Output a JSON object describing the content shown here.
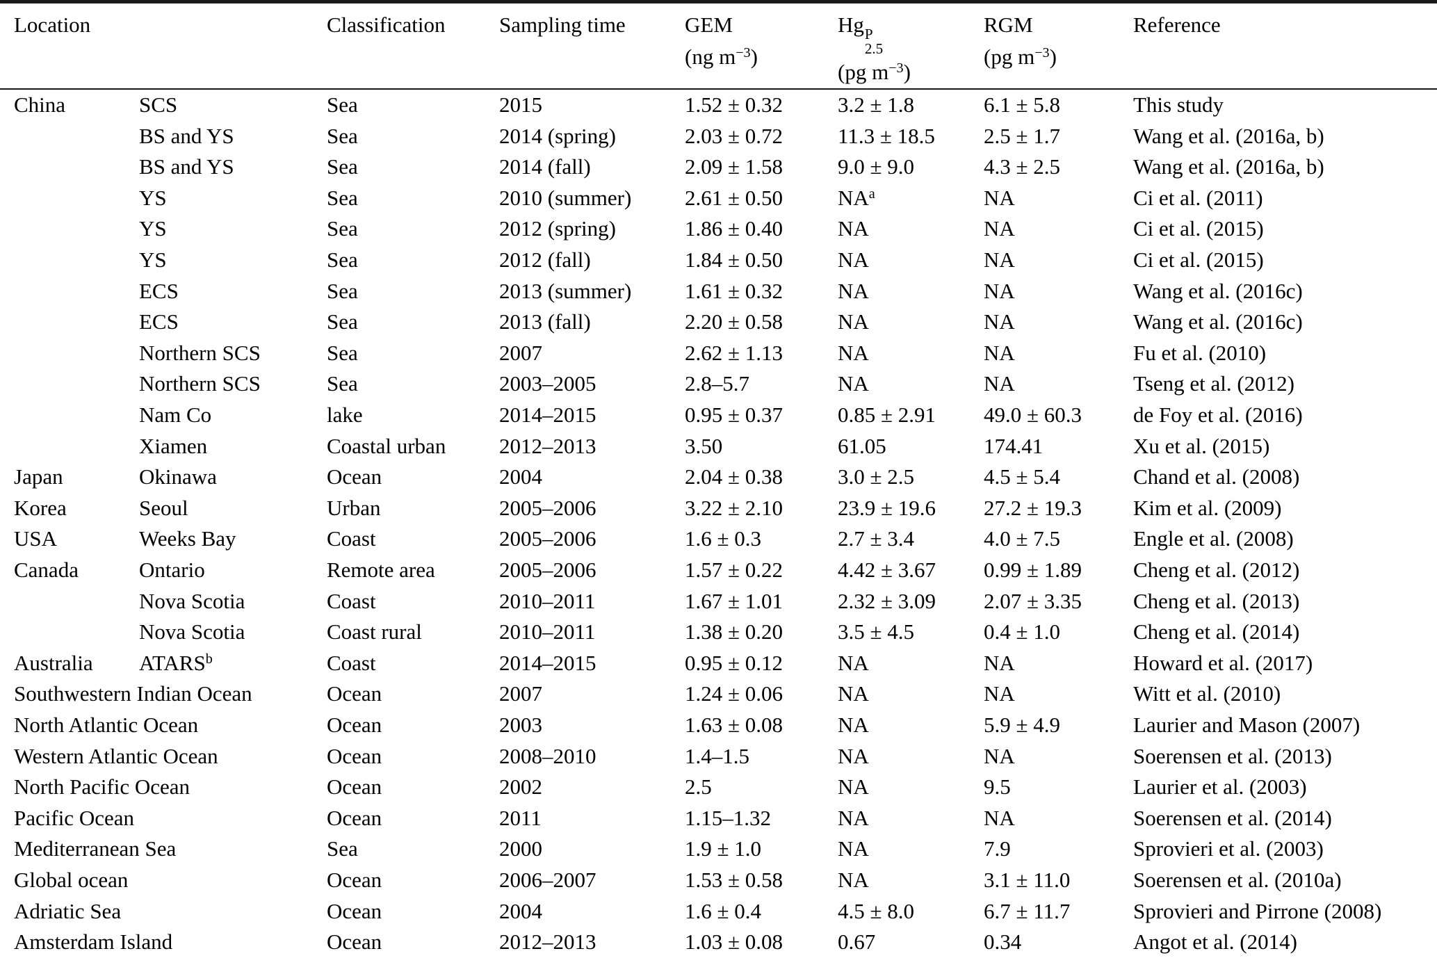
{
  "table": {
    "header": {
      "location": "Location",
      "classification": "Classification",
      "sampling_time": "Sampling time",
      "gem": {
        "name": "GEM",
        "unit_prefix": "(ng m",
        "unit_exp": "−3",
        "unit_suffix": ")"
      },
      "hgp": {
        "base": "Hg",
        "sup": "P",
        "sub": "2.5",
        "unit_prefix": "(pg m",
        "unit_exp": "−3",
        "unit_suffix": ")"
      },
      "rgm": {
        "name": "RGM",
        "unit_prefix": "(pg m",
        "unit_exp": "−3",
        "unit_suffix": ")"
      },
      "reference": "Reference"
    },
    "rows": [
      {
        "wide": false,
        "country": "China",
        "site": "SCS",
        "site_sup": "",
        "classification": "Sea",
        "sampling_time": "2015",
        "gem": "1.52 ± 0.32",
        "hgp": "3.2 ± 1.8",
        "hgp_sup": "",
        "rgm": "6.1 ± 5.8",
        "reference": "This study"
      },
      {
        "wide": false,
        "country": "",
        "site": "BS and YS",
        "site_sup": "",
        "classification": "Sea",
        "sampling_time": "2014 (spring)",
        "gem": "2.03 ± 0.72",
        "hgp": "11.3 ± 18.5",
        "hgp_sup": "",
        "rgm": "2.5 ± 1.7",
        "reference": "Wang et al. (2016a, b)"
      },
      {
        "wide": false,
        "country": "",
        "site": "BS and YS",
        "site_sup": "",
        "classification": "Sea",
        "sampling_time": "2014 (fall)",
        "gem": "2.09 ± 1.58",
        "hgp": "9.0 ± 9.0",
        "hgp_sup": "",
        "rgm": "4.3 ± 2.5",
        "reference": "Wang et al. (2016a, b)"
      },
      {
        "wide": false,
        "country": "",
        "site": "YS",
        "site_sup": "",
        "classification": "Sea",
        "sampling_time": "2010 (summer)",
        "gem": "2.61 ± 0.50",
        "hgp": "NA",
        "hgp_sup": "a",
        "rgm": "NA",
        "reference": "Ci et al. (2011)"
      },
      {
        "wide": false,
        "country": "",
        "site": "YS",
        "site_sup": "",
        "classification": "Sea",
        "sampling_time": "2012 (spring)",
        "gem": "1.86 ± 0.40",
        "hgp": "NA",
        "hgp_sup": "",
        "rgm": "NA",
        "reference": "Ci et al. (2015)"
      },
      {
        "wide": false,
        "country": "",
        "site": "YS",
        "site_sup": "",
        "classification": "Sea",
        "sampling_time": "2012 (fall)",
        "gem": "1.84 ± 0.50",
        "hgp": "NA",
        "hgp_sup": "",
        "rgm": "NA",
        "reference": "Ci et al. (2015)"
      },
      {
        "wide": false,
        "country": "",
        "site": "ECS",
        "site_sup": "",
        "classification": "Sea",
        "sampling_time": "2013 (summer)",
        "gem": "1.61 ± 0.32",
        "hgp": "NA",
        "hgp_sup": "",
        "rgm": "NA",
        "reference": "Wang et al. (2016c)"
      },
      {
        "wide": false,
        "country": "",
        "site": "ECS",
        "site_sup": "",
        "classification": "Sea",
        "sampling_time": "2013 (fall)",
        "gem": "2.20 ± 0.58",
        "hgp": "NA",
        "hgp_sup": "",
        "rgm": "NA",
        "reference": "Wang et al. (2016c)"
      },
      {
        "wide": false,
        "country": "",
        "site": "Northern SCS",
        "site_sup": "",
        "classification": "Sea",
        "sampling_time": "2007",
        "gem": "2.62 ± 1.13",
        "hgp": "NA",
        "hgp_sup": "",
        "rgm": "NA",
        "reference": "Fu et al. (2010)"
      },
      {
        "wide": false,
        "country": "",
        "site": "Northern SCS",
        "site_sup": "",
        "classification": "Sea",
        "sampling_time": "2003–2005",
        "gem": "2.8–5.7",
        "hgp": "NA",
        "hgp_sup": "",
        "rgm": "NA",
        "reference": "Tseng et al. (2012)"
      },
      {
        "wide": false,
        "country": "",
        "site": "Nam Co",
        "site_sup": "",
        "classification": "lake",
        "sampling_time": "2014–2015",
        "gem": "0.95 ± 0.37",
        "hgp": "0.85 ± 2.91",
        "hgp_sup": "",
        "rgm": "49.0 ± 60.3",
        "reference": "de Foy et al. (2016)"
      },
      {
        "wide": false,
        "country": "",
        "site": "Xiamen",
        "site_sup": "",
        "classification": "Coastal urban",
        "sampling_time": "2012–2013",
        "gem": "3.50",
        "hgp": "61.05",
        "hgp_sup": "",
        "rgm": "174.41",
        "reference": "Xu et al. (2015)"
      },
      {
        "wide": false,
        "country": "Japan",
        "site": "Okinawa",
        "site_sup": "",
        "classification": "Ocean",
        "sampling_time": "2004",
        "gem": "2.04 ± 0.38",
        "hgp": "3.0 ± 2.5",
        "hgp_sup": "",
        "rgm": "4.5 ± 5.4",
        "reference": "Chand et al. (2008)"
      },
      {
        "wide": false,
        "country": "Korea",
        "site": "Seoul",
        "site_sup": "",
        "classification": "Urban",
        "sampling_time": "2005–2006",
        "gem": "3.22 ± 2.10",
        "hgp": "23.9 ± 19.6",
        "hgp_sup": "",
        "rgm": "27.2 ± 19.3",
        "reference": "Kim et al. (2009)"
      },
      {
        "wide": false,
        "country": "USA",
        "site": "Weeks Bay",
        "site_sup": "",
        "classification": "Coast",
        "sampling_time": "2005–2006",
        "gem": "1.6 ± 0.3",
        "hgp": "2.7 ± 3.4",
        "hgp_sup": "",
        "rgm": "4.0 ± 7.5",
        "reference": "Engle et al. (2008)"
      },
      {
        "wide": false,
        "country": "Canada",
        "site": "Ontario",
        "site_sup": "",
        "classification": "Remote area",
        "sampling_time": "2005–2006",
        "gem": "1.57 ± 0.22",
        "hgp": "4.42 ± 3.67",
        "hgp_sup": "",
        "rgm": "0.99 ± 1.89",
        "reference": "Cheng et al. (2012)"
      },
      {
        "wide": false,
        "country": "",
        "site": "Nova Scotia",
        "site_sup": "",
        "classification": "Coast",
        "sampling_time": "2010–2011",
        "gem": "1.67 ± 1.01",
        "hgp": "2.32 ± 3.09",
        "hgp_sup": "",
        "rgm": "2.07 ± 3.35",
        "reference": "Cheng et al. (2013)"
      },
      {
        "wide": false,
        "country": "",
        "site": "Nova Scotia",
        "site_sup": "",
        "classification": "Coast rural",
        "sampling_time": "2010–2011",
        "gem": "1.38 ± 0.20",
        "hgp": "3.5 ± 4.5",
        "hgp_sup": "",
        "rgm": "0.4 ± 1.0",
        "reference": "Cheng et al. (2014)"
      },
      {
        "wide": false,
        "country": "Australia",
        "site": "ATARS",
        "site_sup": "b",
        "classification": "Coast",
        "sampling_time": "2014–2015",
        "gem": "0.95 ± 0.12",
        "hgp": "NA",
        "hgp_sup": "",
        "rgm": "NA",
        "reference": "Howard et al. (2017)"
      },
      {
        "wide": true,
        "location": "Southwestern Indian Ocean",
        "classification": "Ocean",
        "sampling_time": "2007",
        "gem": "1.24 ± 0.06",
        "hgp": "NA",
        "hgp_sup": "",
        "rgm": "NA",
        "reference": "Witt et al. (2010)"
      },
      {
        "wide": true,
        "location": "North Atlantic Ocean",
        "classification": "Ocean",
        "sampling_time": "2003",
        "gem": "1.63 ± 0.08",
        "hgp": "NA",
        "hgp_sup": "",
        "rgm": "5.9 ± 4.9",
        "reference": "Laurier and Mason (2007)"
      },
      {
        "wide": true,
        "location": "Western Atlantic Ocean",
        "classification": "Ocean",
        "sampling_time": "2008–2010",
        "gem": "1.4–1.5",
        "hgp": "NA",
        "hgp_sup": "",
        "rgm": "NA",
        "reference": "Soerensen et al. (2013)"
      },
      {
        "wide": true,
        "location": "North Pacific Ocean",
        "classification": "Ocean",
        "sampling_time": "2002",
        "gem": "2.5",
        "hgp": "NA",
        "hgp_sup": "",
        "rgm": "9.5",
        "reference": "Laurier et al. (2003)"
      },
      {
        "wide": true,
        "location": "Pacific Ocean",
        "classification": "Ocean",
        "sampling_time": "2011",
        "gem": "1.15–1.32",
        "hgp": "NA",
        "hgp_sup": "",
        "rgm": "NA",
        "reference": "Soerensen et al. (2014)"
      },
      {
        "wide": true,
        "location": "Mediterranean Sea",
        "classification": "Sea",
        "sampling_time": "2000",
        "gem": "1.9 ± 1.0",
        "hgp": "NA",
        "hgp_sup": "",
        "rgm": "7.9",
        "reference": "Sprovieri et al. (2003)"
      },
      {
        "wide": true,
        "location": "Global ocean",
        "classification": "Ocean",
        "sampling_time": "2006–2007",
        "gem": "1.53 ± 0.58",
        "hgp": "NA",
        "hgp_sup": "",
        "rgm": "3.1 ± 11.0",
        "reference": "Soerensen et al. (2010a)"
      },
      {
        "wide": true,
        "location": "Adriatic Sea",
        "classification": "Ocean",
        "sampling_time": "2004",
        "gem": "1.6 ± 0.4",
        "hgp": "4.5 ± 8.0",
        "hgp_sup": "",
        "rgm": "6.7 ± 11.7",
        "reference": "Sprovieri and Pirrone (2008)"
      },
      {
        "wide": true,
        "location": "Amsterdam Island",
        "classification": "Ocean",
        "sampling_time": "2012–2013",
        "gem": "1.03 ± 0.08",
        "hgp": "0.67",
        "hgp_sup": "",
        "rgm": "0.34",
        "reference": "Angot et al. (2014)"
      }
    ]
  }
}
